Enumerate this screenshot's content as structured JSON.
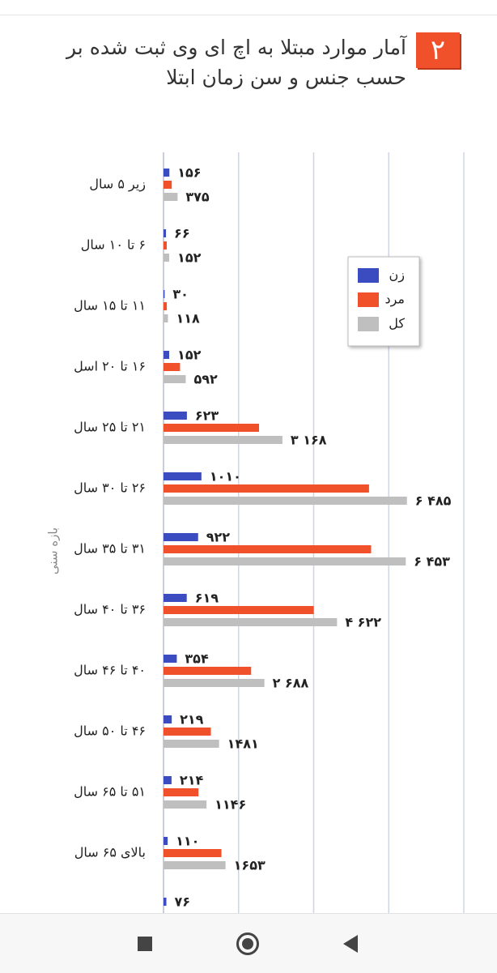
{
  "chart_data": {
    "type": "bar",
    "orientation": "horizontal",
    "badge": "۲",
    "title": "آمار موارد مبتلا به اچ ای وی ثبت شده بر حسب جنس و سن زمان ابتلا",
    "y_label": "بازه سنی",
    "categories": [
      "زیر ۵ سال",
      "۶ تا ۱۰ سال",
      "۱۱ تا ۱۵ سال",
      "۱۶ تا ۲۰ اسل",
      "۲۱ تا ۲۵ سال",
      "۲۶ تا ۳۰ سال",
      "۳۱ تا ۳۵ سال",
      "۳۶ تا ۴۰ سال",
      "۴۰ تا ۴۶ سال",
      "۴۶ تا ۵۰ سال",
      "۵۱ تا ۶۵ سال",
      "بالای ۶۵ سال",
      null
    ],
    "series": [
      {
        "name": "زن",
        "color": "#3b4cc0",
        "values": [
          156,
          66,
          30,
          152,
          623,
          1010,
          922,
          619,
          354,
          219,
          214,
          110,
          76
        ],
        "value_labels": [
          "۱۵۶",
          "۶۶",
          "۳۰",
          "۱۵۲",
          "۶۲۳",
          "۱۰۱۰",
          "۹۲۲",
          "۶۱۹",
          "۳۵۴",
          "۲۱۹",
          "۲۱۴",
          "۱۱۰",
          "۷۶"
        ]
      },
      {
        "name": "مرد",
        "color": "#f0512b",
        "values": [
          219,
          86,
          88,
          440,
          2545,
          5475,
          5531,
          4003,
          2334,
          1262,
          932,
          1543,
          null
        ]
      },
      {
        "name": "کل",
        "color": "#bfbfbf",
        "values": [
          375,
          152,
          118,
          592,
          3168,
          6485,
          6453,
          4622,
          2688,
          1481,
          1146,
          1653,
          null
        ],
        "value_labels": [
          "۳۷۵",
          "۱۵۲",
          "۱۱۸",
          "۵۹۲",
          "۳ ۱۶۸",
          "۶ ۴۸۵",
          "۶ ۴۵۳",
          "۴ ۶۲۲",
          "۲ ۶۸۸",
          "۱۴۸۱",
          "۱۱۴۶",
          "۱۶۵۳",
          null
        ]
      }
    ],
    "xlim": [
      0,
      8000
    ],
    "xticks": [
      0,
      2000,
      4000,
      6000,
      8000
    ],
    "grid": true,
    "legend": "right"
  }
}
